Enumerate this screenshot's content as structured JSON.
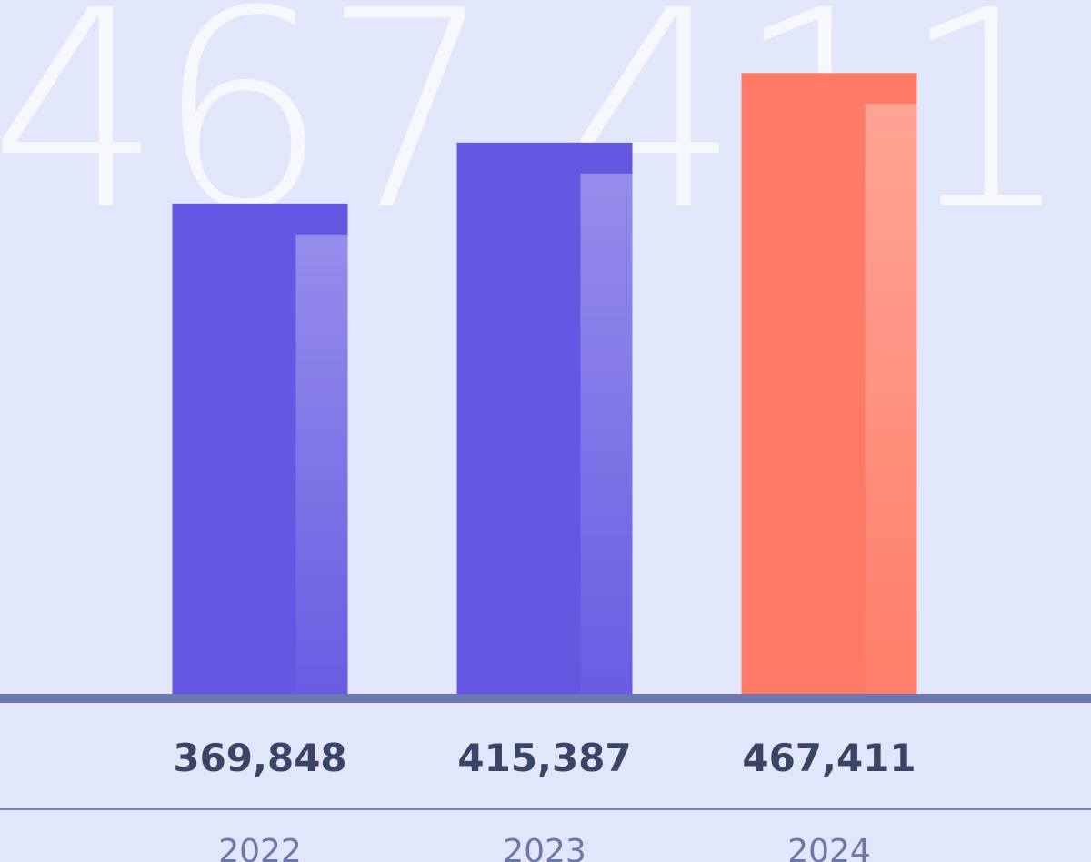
{
  "chart_data": {
    "type": "bar",
    "background_text": "467,411",
    "categories": [
      "2022",
      "2023",
      "2024"
    ],
    "values": [
      369848,
      415387,
      467411
    ],
    "value_labels": [
      "369,848",
      "415,387",
      "467,411"
    ],
    "colors": [
      "#6557e2",
      "#6557e2",
      "#ff7a64"
    ],
    "ylim": [
      0,
      522000
    ]
  }
}
